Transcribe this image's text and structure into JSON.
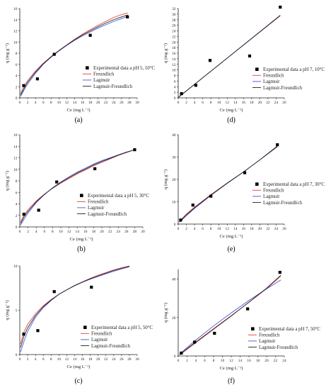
{
  "chart_data": [
    {
      "type": "scatter",
      "caption": "(a)",
      "xlabel": "Ce (mg L⁻¹)",
      "ylabel": "q (mg g⁻¹)",
      "xlim": [
        0,
        30
      ],
      "ylim": [
        0,
        16
      ],
      "xticks": [
        0,
        2,
        4,
        6,
        8,
        10,
        12,
        14,
        16,
        18,
        20,
        22,
        24,
        26,
        28,
        30
      ],
      "yticks": [
        0,
        2,
        4,
        6,
        8,
        10,
        12,
        14,
        16
      ],
      "points": [
        [
          1.0,
          2.2
        ],
        [
          4.5,
          3.4
        ],
        [
          8.8,
          7.8
        ],
        [
          18.0,
          11.2
        ],
        [
          27.5,
          14.5
        ]
      ],
      "legend": [
        "Experimental data a pH 5, 10°C",
        "Freundlich",
        "Lagmuir",
        "Lagmuir-Freundlich"
      ],
      "series": [
        {
          "name": "Freundlich",
          "color": "#e0413a",
          "x": [
            0.2,
            1,
            2,
            4,
            6,
            8,
            10,
            12,
            14,
            16,
            18,
            20,
            22,
            24,
            26,
            27.6
          ],
          "values": [
            0.8,
            2.0,
            3.1,
            4.8,
            6.2,
            7.4,
            8.5,
            9.5,
            10.5,
            11.4,
            12.2,
            13.0,
            13.7,
            14.4,
            14.9,
            15.2
          ]
        },
        {
          "name": "Lagmuir",
          "color": "#3b59d6",
          "x": [
            0.2,
            1,
            2,
            4,
            6,
            8,
            10,
            12,
            14,
            16,
            18,
            20,
            22,
            24,
            26,
            27.6
          ],
          "values": [
            0.3,
            1.3,
            2.5,
            4.4,
            6.0,
            7.3,
            8.4,
            9.4,
            10.3,
            11.1,
            11.8,
            12.5,
            13.1,
            13.7,
            14.2,
            14.6
          ]
        },
        {
          "name": "Lagmuir-Freundlich",
          "color": "#222222",
          "x": [
            0.2,
            1,
            2,
            4,
            6,
            8,
            10,
            12,
            14,
            16,
            18,
            20,
            22,
            24,
            26,
            27.6
          ],
          "values": [
            0.5,
            1.6,
            2.8,
            4.6,
            6.1,
            7.35,
            8.45,
            9.45,
            10.4,
            11.25,
            12.0,
            12.75,
            13.4,
            14.0,
            14.5,
            14.85
          ]
        }
      ]
    },
    {
      "type": "scatter",
      "caption": "(d)",
      "xlabel": "Ce (mg L⁻¹)",
      "ylabel": "q (mg g⁻¹)",
      "xlim": [
        0,
        26
      ],
      "ylim": [
        0,
        32
      ],
      "xticks": [
        0,
        2,
        4,
        6,
        8,
        10,
        12,
        14,
        16,
        18,
        20,
        22,
        24,
        26
      ],
      "yticks": [
        0,
        2,
        4,
        6,
        8,
        10,
        12,
        14,
        16,
        18,
        20,
        22,
        24,
        26,
        28,
        30,
        32
      ],
      "points": [
        [
          0.8,
          1.5
        ],
        [
          4.3,
          4.5
        ],
        [
          7.8,
          13.4
        ],
        [
          17.5,
          15.0
        ],
        [
          25.0,
          32.5
        ]
      ],
      "legend": [
        "Experimental data a pH 7, 10°C",
        "Freundlich",
        "Lagmuir",
        "Lagmuir-Freundlich"
      ],
      "series": [
        {
          "name": "Freundlich",
          "color": "#e0413a",
          "x": [
            0,
            25
          ],
          "values": [
            0.2,
            29.4
          ]
        },
        {
          "name": "Lagmuir",
          "color": "#3b59d6",
          "x": [
            0,
            25
          ],
          "values": [
            0.1,
            29.6
          ]
        },
        {
          "name": "Lagmuir-Freundlich",
          "color": "#222222",
          "x": [
            0,
            25
          ],
          "values": [
            0.15,
            29.5
          ]
        }
      ]
    },
    {
      "type": "scatter",
      "caption": "(b)",
      "xlabel": "Ce (mg L⁻¹)",
      "ylabel": "q (mg g⁻¹)",
      "xlim": [
        0,
        30
      ],
      "ylim": [
        0,
        16
      ],
      "xticks": [
        0,
        2,
        4,
        6,
        8,
        10,
        12,
        14,
        16,
        18,
        20,
        22,
        24,
        26,
        28,
        30
      ],
      "yticks": [
        0,
        2,
        4,
        6,
        8,
        10,
        12,
        14,
        16
      ],
      "points": [
        [
          1.0,
          2.2
        ],
        [
          4.6,
          2.9
        ],
        [
          9.0,
          7.8
        ],
        [
          18.3,
          10.1
        ],
        [
          28.0,
          13.4
        ]
      ],
      "legend": [
        "Experimental data a pH 5, 30°C",
        "Freundlich",
        "Lagmuir",
        "Lagmuir-Freundlich"
      ],
      "series": [
        {
          "name": "Freundlich",
          "color": "#e0413a",
          "x": [
            0.2,
            1,
            2,
            4,
            6,
            8,
            10,
            12,
            14,
            16,
            18,
            20,
            22,
            24,
            26,
            28
          ],
          "values": [
            0.9,
            2.0,
            3.0,
            4.5,
            5.7,
            6.7,
            7.6,
            8.4,
            9.2,
            9.9,
            10.6,
            11.2,
            11.8,
            12.4,
            12.9,
            13.4
          ]
        },
        {
          "name": "Lagmuir",
          "color": "#3b59d6",
          "x": [
            0.2,
            1,
            2,
            4,
            6,
            8,
            10,
            12,
            14,
            16,
            18,
            20,
            22,
            24,
            26,
            28
          ],
          "values": [
            0.3,
            1.3,
            2.4,
            4.2,
            5.6,
            6.8,
            7.8,
            8.7,
            9.5,
            10.2,
            10.9,
            11.5,
            12.0,
            12.5,
            13.0,
            13.4
          ]
        },
        {
          "name": "Lagmuir-Freundlich",
          "color": "#222222",
          "x": [
            0.2,
            1,
            2,
            4,
            6,
            8,
            10,
            12,
            14,
            16,
            18,
            20,
            22,
            24,
            26,
            28
          ],
          "values": [
            0.6,
            1.7,
            2.7,
            4.35,
            5.65,
            6.75,
            7.7,
            8.55,
            9.35,
            10.05,
            10.75,
            11.35,
            11.9,
            12.45,
            12.95,
            13.4
          ]
        }
      ]
    },
    {
      "type": "scatter",
      "caption": "(e)",
      "xlabel": "Ce (mg L⁻¹)",
      "ylabel": "q (mg g⁻¹)",
      "xlim": [
        0,
        26
      ],
      "ylim": [
        0,
        40
      ],
      "xticks": [
        0,
        2,
        4,
        6,
        8,
        10,
        12,
        14,
        16,
        18,
        20,
        22,
        24,
        26
      ],
      "yticks": [
        0,
        10,
        20,
        30,
        40
      ],
      "points": [
        [
          0.6,
          1.8
        ],
        [
          3.6,
          8.5
        ],
        [
          8.0,
          12.5
        ],
        [
          16.3,
          23.0
        ],
        [
          24.3,
          35.5
        ]
      ],
      "legend": [
        "Experimental data a pH 7, 30°C",
        "Freundlich",
        "Lagmuir",
        "Lagmuir-Freundlich"
      ],
      "series": [
        {
          "name": "Freundlich",
          "color": "#e0413a",
          "x": [
            0.3,
            2,
            4,
            8,
            12,
            16,
            20,
            24.3
          ],
          "values": [
            1.2,
            4.5,
            7.6,
            13.2,
            18.4,
            23.4,
            28.7,
            34.6
          ]
        },
        {
          "name": "Lagmuir",
          "color": "#3b59d6",
          "x": [
            0.3,
            2,
            4,
            8,
            12,
            16,
            20,
            24.3
          ],
          "values": [
            0.8,
            3.8,
            7.0,
            12.8,
            18.2,
            23.3,
            28.8,
            35.0
          ]
        },
        {
          "name": "Lagmuir-Freundlich",
          "color": "#222222",
          "x": [
            0.3,
            2,
            4,
            8,
            12,
            16,
            20,
            24.3
          ],
          "values": [
            1.0,
            4.1,
            7.3,
            13.0,
            18.3,
            23.35,
            28.75,
            34.8
          ]
        }
      ]
    },
    {
      "type": "scatter",
      "caption": "(c)",
      "xlabel": "Ce (mg L⁻¹)",
      "ylabel": "q (mg g⁻¹)",
      "xlim": [
        0,
        30
      ],
      "ylim": [
        0,
        10
      ],
      "xticks": [
        0,
        2,
        4,
        6,
        8,
        10,
        12,
        14,
        16,
        18,
        20,
        22,
        24,
        26,
        28,
        30
      ],
      "yticks": [
        0,
        5,
        10
      ],
      "points": [
        [
          1.0,
          2.3
        ],
        [
          4.6,
          2.7
        ],
        [
          8.8,
          7.1
        ],
        [
          18.3,
          7.6
        ]
      ],
      "legend": [
        "Experimental data a pH 5, 50°C",
        "Freundlich",
        "Lagmuir",
        "Lagmuir-Freundlich"
      ],
      "series": [
        {
          "name": "Freundlich",
          "color": "#e0413a",
          "x": [
            0.2,
            1,
            2,
            4,
            6,
            8,
            10,
            12,
            14,
            16,
            18,
            20,
            22,
            24,
            26,
            28
          ],
          "values": [
            1.2,
            2.5,
            3.4,
            4.6,
            5.5,
            6.2,
            6.8,
            7.3,
            7.8,
            8.2,
            8.6,
            8.95,
            9.25,
            9.55,
            9.8,
            10.0
          ]
        },
        {
          "name": "Lagmuir",
          "color": "#3b59d6",
          "x": [
            0.2,
            1,
            2,
            4,
            6,
            8,
            10,
            12,
            14,
            16,
            18,
            20,
            22,
            24,
            26,
            28
          ],
          "values": [
            0.3,
            1.4,
            2.6,
            4.2,
            5.3,
            6.1,
            6.8,
            7.3,
            7.75,
            8.15,
            8.5,
            8.8,
            9.1,
            9.4,
            9.65,
            9.9
          ]
        },
        {
          "name": "Lagmuir-Freundlich",
          "color": "#222222",
          "x": [
            0.2,
            1,
            2,
            4,
            6,
            8,
            10,
            12,
            14,
            16,
            18,
            20,
            22,
            24,
            26,
            28
          ],
          "values": [
            0.8,
            2.0,
            3.0,
            4.4,
            5.4,
            6.15,
            6.8,
            7.3,
            7.78,
            8.18,
            8.55,
            8.88,
            9.18,
            9.48,
            9.73,
            9.95
          ]
        }
      ]
    },
    {
      "type": "scatter",
      "caption": "(f)",
      "xlabel": "Ce (mg L⁻¹)",
      "ylabel": "q (mg g⁻¹)",
      "xlim": [
        0,
        24
      ],
      "ylim": [
        0,
        45
      ],
      "xticks": [
        0,
        2,
        4,
        6,
        8,
        10,
        12,
        14,
        16,
        18,
        20,
        22,
        24
      ],
      "yticks": [
        0,
        20,
        40
      ],
      "points": [
        [
          0.7,
          1.5
        ],
        [
          3.7,
          7.2
        ],
        [
          8.2,
          11.8
        ],
        [
          15.7,
          24.5
        ],
        [
          23.0,
          43.5
        ]
      ],
      "legend": [
        "Experimental data a pH 7, 50°C",
        "Freundlich",
        "Lagmuir",
        "Lagmuir-Freundlich"
      ],
      "series": [
        {
          "name": "Freundlich",
          "color": "#e0413a",
          "x": [
            0.3,
            4,
            8,
            12,
            16,
            20,
            23.2
          ],
          "values": [
            0.9,
            7.4,
            14.2,
            21.0,
            27.9,
            35.0,
            41.5
          ]
        },
        {
          "name": "Lagmuir",
          "color": "#3b59d6",
          "x": [
            0.3,
            4,
            8,
            12,
            16,
            20,
            23.2
          ],
          "values": [
            1.0,
            8.3,
            15.6,
            22.4,
            28.9,
            34.9,
            39.5
          ]
        },
        {
          "name": "Lagmuir-Freundlich",
          "color": "#222222",
          "x": [
            0.3,
            4,
            8,
            12,
            16,
            20,
            23.2
          ],
          "values": [
            0.6,
            7.0,
            13.9,
            20.8,
            28.0,
            35.3,
            42.0
          ]
        }
      ]
    }
  ]
}
